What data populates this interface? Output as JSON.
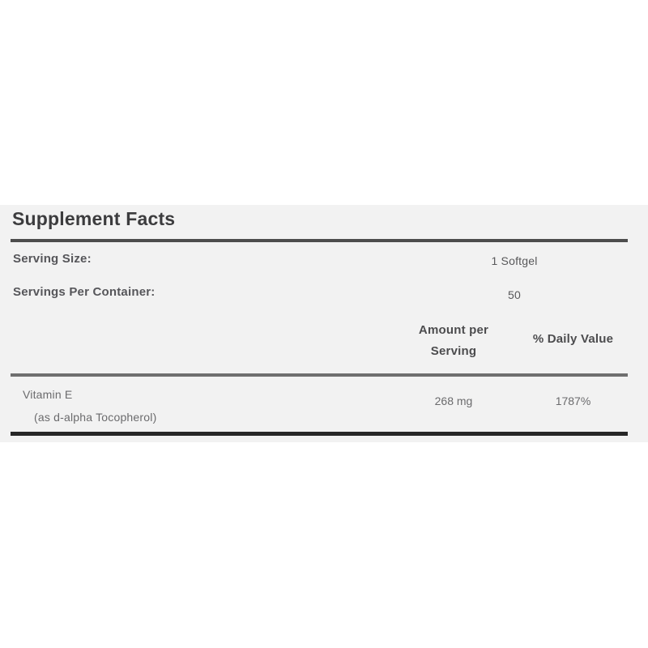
{
  "panel": {
    "title": "Supplement Facts",
    "serving_size": {
      "label": "Serving Size:",
      "value": "1 Softgel"
    },
    "servings_per_container": {
      "label": "Servings Per Container:",
      "value": "50"
    },
    "columns": {
      "amount": "Amount per Serving",
      "daily_value": "% Daily Value"
    },
    "nutrients": [
      {
        "name": "Vitamin E",
        "detail": "(as d-alpha Tocopherol)",
        "amount": "268 mg",
        "daily_value": "1787%"
      }
    ],
    "colors": {
      "panel_background": "#f2f2f2",
      "title_text": "#3c3c3e",
      "body_text": "#56565a",
      "muted_text": "#6b6b6d",
      "title_rule": "#4d4d4d",
      "header_rule": "#6f6f6f",
      "bottom_rule": "#272727"
    }
  }
}
